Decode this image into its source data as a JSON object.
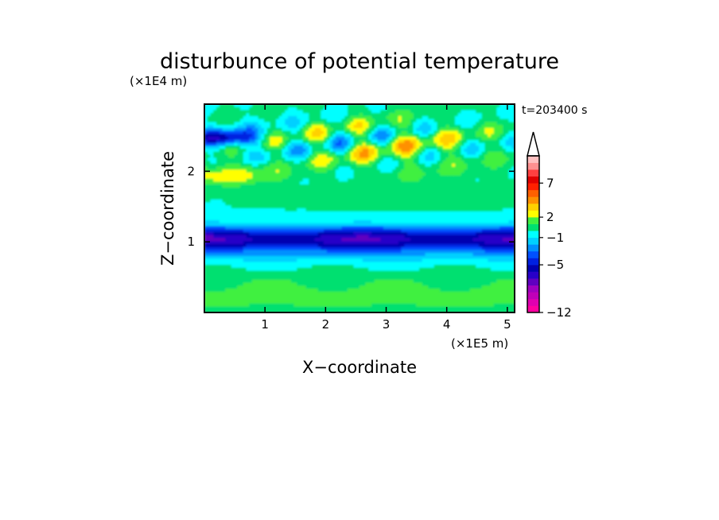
{
  "chart_data": {
    "type": "heatmap",
    "title": "disturbunce of potential temperature",
    "xlabel": "X−coordinate",
    "ylabel": "Z−coordinate",
    "x_unit": "(×1E5 m)",
    "y_unit": "(×1E4 m)",
    "time_label": "t=203400 s",
    "xlim": [
      0,
      5.12
    ],
    "ylim": [
      0,
      2.95
    ],
    "x_ticks": [
      1,
      2,
      3,
      4,
      5
    ],
    "y_ticks": [
      1,
      2
    ],
    "grid": false,
    "colorbar": {
      "levels": [
        -12,
        -11,
        -10,
        -9,
        -8,
        -7,
        -6,
        -5,
        -4,
        -3,
        -2,
        -1,
        0,
        1,
        2,
        3,
        4,
        5,
        6,
        7,
        8,
        9,
        10
      ],
      "tick_labels": [
        "−12",
        "−5",
        "−1",
        "2",
        "7"
      ],
      "tick_values": [
        -12,
        -5,
        -1,
        2,
        7
      ],
      "extend": "max",
      "colors": [
        "#ff00a0",
        "#e000b0",
        "#c000b8",
        "#a000c0",
        "#6000c0",
        "#2800c8",
        "#0000b0",
        "#0020e0",
        "#0050ff",
        "#0090ff",
        "#00d0ff",
        "#00ffff",
        "#00e070",
        "#40f040",
        "#ffff00",
        "#ffd000",
        "#ff9000",
        "#ff6000",
        "#ff2000",
        "#e00000",
        "#ff4040",
        "#ff9090",
        "#ffc0c0"
      ]
    }
  }
}
